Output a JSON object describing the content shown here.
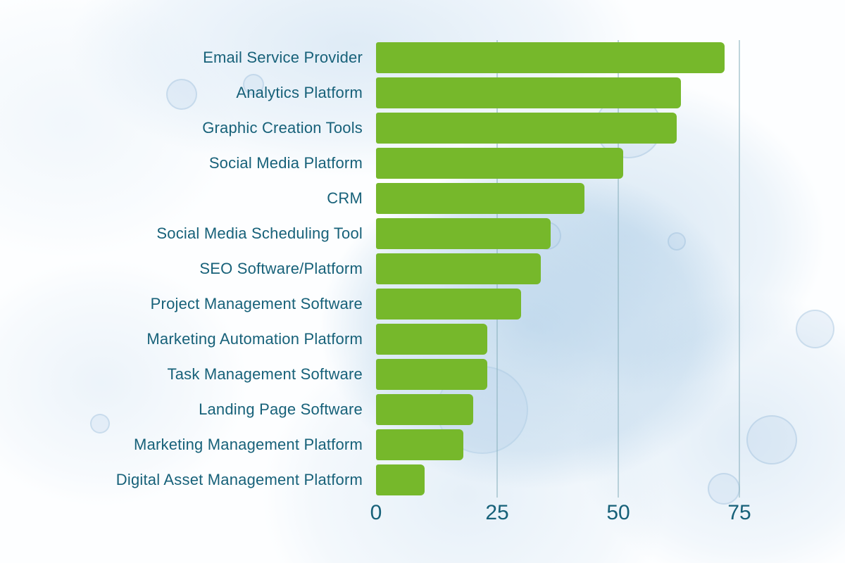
{
  "chart_data": {
    "type": "bar",
    "orientation": "horizontal",
    "title": "",
    "xlabel": "",
    "ylabel": "",
    "categories": [
      "Email Service Provider",
      "Analytics Platform",
      "Graphic Creation Tools",
      "Social Media Platform",
      "CRM",
      "Social Media Scheduling Tool",
      "SEO Software/Platform",
      "Project Management Software",
      "Marketing Automation Platform",
      "Task Management Software",
      "Landing Page Software",
      "Marketing Management Platform",
      "Digital Asset Management Platform"
    ],
    "values": [
      72,
      63,
      62,
      51,
      43,
      36,
      34,
      30,
      23,
      23,
      20,
      18,
      10
    ],
    "xlim": [
      0,
      75
    ],
    "xticks": [
      0,
      25,
      50,
      75
    ],
    "grid": "vertical gridlines at 25/50/75, drawn behind bars",
    "legend": "none",
    "bar_color": "#76b82b",
    "label_color": "#176179",
    "gridline_color": "#8db2c0",
    "background": "white with light blue watercolor texture"
  }
}
